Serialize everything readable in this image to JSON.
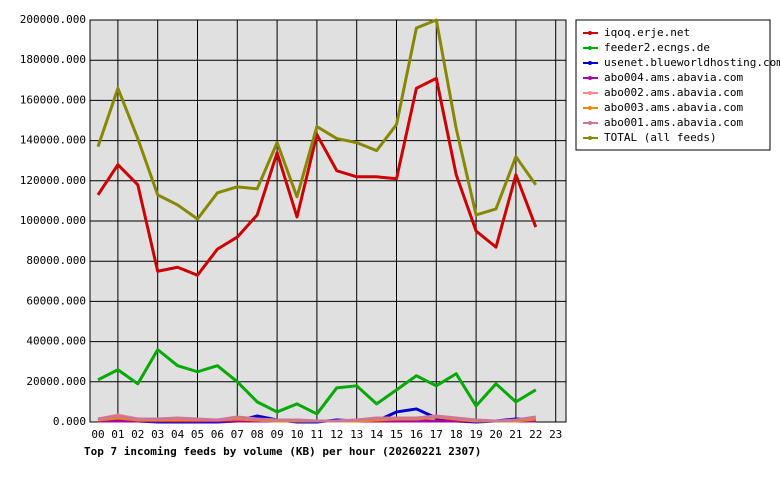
{
  "chart_data": {
    "type": "line",
    "title": "Top 7 incoming feeds by volume (KB) per hour (20260221 2307)",
    "categories": [
      "00",
      "01",
      "02",
      "03",
      "04",
      "05",
      "06",
      "07",
      "08",
      "09",
      "10",
      "11",
      "12",
      "13",
      "14",
      "15",
      "16",
      "17",
      "18",
      "19",
      "20",
      "21",
      "22",
      "23"
    ],
    "ylim": [
      0,
      200000
    ],
    "yticks": [
      {
        "value": 0,
        "label": "0.000"
      },
      {
        "value": 20000,
        "label": "20000.000"
      },
      {
        "value": 40000,
        "label": "40000.000"
      },
      {
        "value": 60000,
        "label": "60000.000"
      },
      {
        "value": 80000,
        "label": "80000.000"
      },
      {
        "value": 100000,
        "label": "100000.000"
      },
      {
        "value": 120000,
        "label": "120000.000"
      },
      {
        "value": 140000,
        "label": "140000.000"
      },
      {
        "value": 160000,
        "label": "160000.000"
      },
      {
        "value": 180000,
        "label": "180000.000"
      },
      {
        "value": 200000,
        "label": "200000.000"
      }
    ],
    "grid": true,
    "legend": "right",
    "series": [
      {
        "name": "iqoq.erje.net",
        "color": "#cc0000",
        "values": [
          113000,
          128000,
          118000,
          75000,
          77000,
          73000,
          86000,
          92000,
          103000,
          134000,
          102000,
          143000,
          125000,
          122000,
          122000,
          121000,
          166000,
          171000,
          123000,
          95000,
          87000,
          123000,
          97000,
          null
        ]
      },
      {
        "name": "feeder2.ecngs.de",
        "color": "#00aa00",
        "values": [
          21000,
          26000,
          19000,
          36000,
          28000,
          25000,
          28000,
          20000,
          10000,
          5000,
          9000,
          4000,
          17000,
          18000,
          9000,
          16000,
          23000,
          18000,
          24000,
          8000,
          19000,
          10000,
          16000,
          null
        ]
      },
      {
        "name": "usenet.blueworldhosting.com",
        "color": "#0000cc",
        "values": [
          500,
          1000,
          500,
          0,
          0,
          0,
          0,
          500,
          3000,
          1000,
          0,
          0,
          1000,
          500,
          500,
          5000,
          6500,
          2000,
          500,
          0,
          500,
          1500,
          1000,
          null
        ]
      },
      {
        "name": "abo004.ams.abavia.com",
        "color": "#aa00aa",
        "values": [
          500,
          500,
          500,
          500,
          500,
          500,
          500,
          500,
          500,
          500,
          500,
          500,
          500,
          500,
          500,
          500,
          500,
          500,
          500,
          500,
          500,
          500,
          500,
          null
        ]
      },
      {
        "name": "abo002.ams.abavia.com",
        "color": "#ff8888",
        "values": [
          1500,
          3500,
          1500,
          1000,
          1500,
          1000,
          1000,
          2000,
          1000,
          500,
          1000,
          500,
          500,
          1000,
          1500,
          1500,
          1500,
          3000,
          1500,
          500,
          500,
          500,
          2000,
          null
        ]
      },
      {
        "name": "abo003.ams.abavia.com",
        "color": "#ee8800",
        "values": [
          1000,
          2000,
          1000,
          1000,
          1000,
          1000,
          1000,
          1500,
          1000,
          500,
          500,
          500,
          500,
          500,
          1000,
          1500,
          1500,
          2500,
          1500,
          500,
          500,
          500,
          1500,
          null
        ]
      },
      {
        "name": "abo001.ams.abavia.com",
        "color": "#cc7799",
        "values": [
          1500,
          3000,
          1500,
          1500,
          2000,
          1500,
          1000,
          2500,
          1500,
          1000,
          1000,
          500,
          500,
          1000,
          2000,
          2000,
          2000,
          3000,
          2000,
          1000,
          500,
          1000,
          2500,
          null
        ]
      },
      {
        "name": "TOTAL (all feeds)",
        "color": "#888800",
        "values": [
          137000,
          166000,
          141000,
          113000,
          108000,
          101000,
          114000,
          117000,
          116000,
          139000,
          112000,
          147000,
          141000,
          139000,
          135000,
          148000,
          196000,
          200000,
          146000,
          103000,
          106000,
          132000,
          118000,
          null
        ]
      }
    ]
  }
}
